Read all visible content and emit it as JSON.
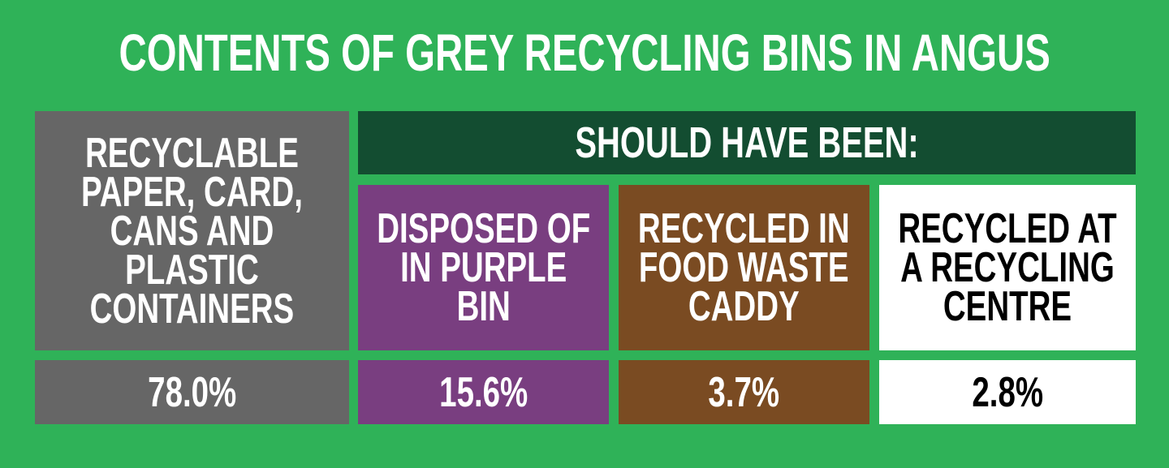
{
  "title": "CONTENTS OF GREY RECYCLING BINS IN ANGUS",
  "header": "SHOULD HAVE BEEN:",
  "columns": [
    {
      "label_lines": [
        "RECYCLABLE",
        "PAPER, CARD,",
        "CANS AND",
        "PLASTIC",
        "CONTAINERS"
      ],
      "value": "78.0%"
    },
    {
      "label_lines": [
        "DISPOSED OF",
        "IN PURPLE",
        "BIN"
      ],
      "value": "15.6%"
    },
    {
      "label_lines": [
        "RECYCLED IN",
        "FOOD WASTE",
        "CADDY"
      ],
      "value": "3.7%"
    },
    {
      "label_lines": [
        "RECYCLED AT",
        "A RECYCLING",
        "CENTRE"
      ],
      "value": "2.8%"
    }
  ]
}
